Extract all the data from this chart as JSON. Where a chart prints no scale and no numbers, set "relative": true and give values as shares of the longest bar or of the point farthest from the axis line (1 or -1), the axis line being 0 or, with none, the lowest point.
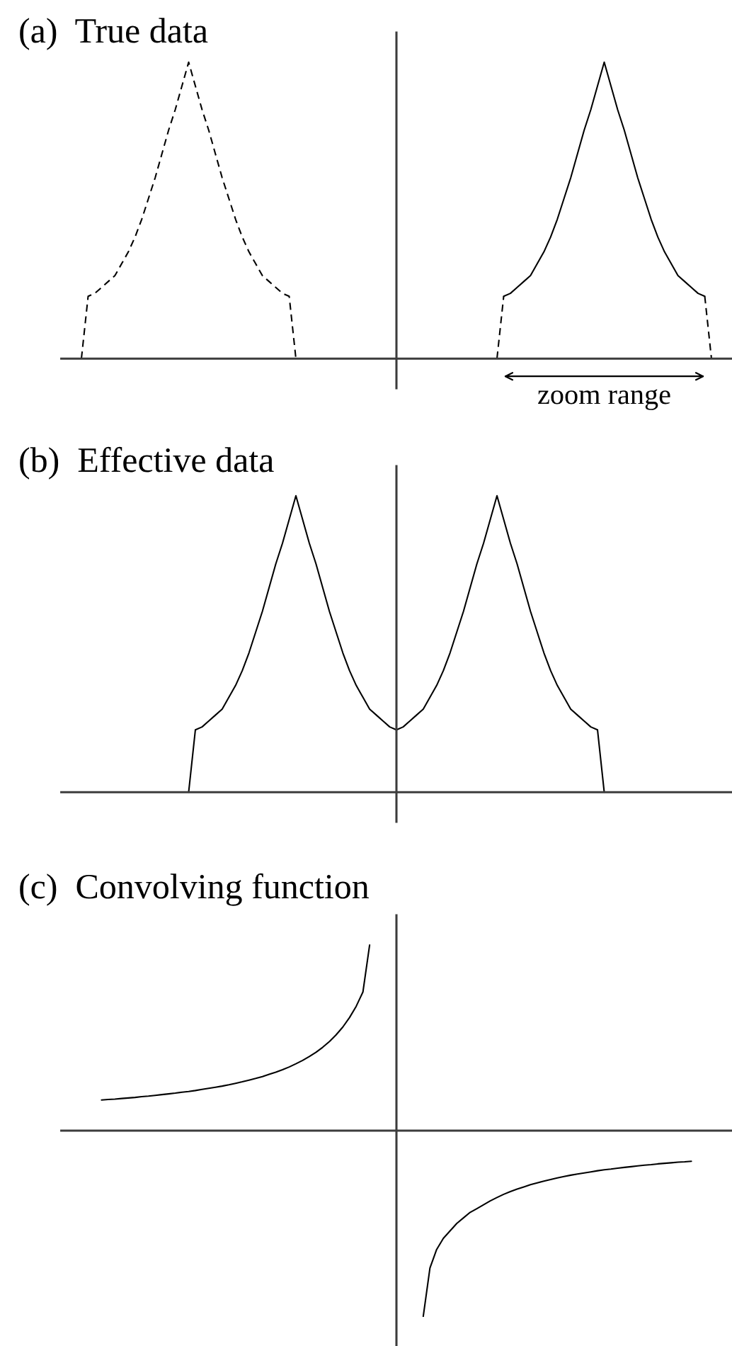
{
  "chart_data": [
    {
      "type": "line",
      "title": "(a)  True data",
      "relative": true,
      "line_style": "solid",
      "annotations": [
        "zoom range"
      ],
      "categories": [
        null,
        null,
        null,
        null,
        null,
        null,
        null,
        null,
        null,
        null,
        null,
        null,
        null,
        null,
        null,
        null,
        null,
        null,
        null,
        null,
        null,
        null,
        null,
        null,
        null,
        null,
        null,
        null,
        null,
        null,
        null,
        null,
        null,
        null,
        null,
        null,
        null,
        null,
        null,
        null,
        null,
        null,
        null,
        null,
        null,
        null,
        null,
        null,
        null,
        null,
        null,
        null,
        null,
        null,
        null,
        null,
        null,
        null,
        null,
        null,
        null,
        null,
        null,
        null,
        null,
        null,
        null,
        null,
        null,
        null,
        null,
        null,
        null,
        null,
        null,
        null,
        null,
        null,
        null,
        null,
        null,
        null,
        null,
        null,
        null,
        null,
        null,
        null,
        null,
        null,
        null,
        null,
        null,
        null,
        null,
        null,
        null,
        null,
        null,
        null,
        null
      ],
      "series": [
        {
          "color": "#000000",
          "line_style": "dashed",
          "values": [
            null,
            null,
            null,
            0,
            0.21,
            0.22,
            0.24,
            0.26,
            0.28,
            0.32,
            0.36,
            0.41,
            0.47,
            0.54,
            0.61,
            0.69,
            0.77,
            0.84,
            0.92,
            1,
            0.92,
            0.84,
            0.77,
            0.69,
            0.61,
            0.54,
            0.47,
            0.41,
            0.36,
            0.32,
            0.28,
            0.26,
            0.24,
            0.22,
            0.21,
            0,
            null,
            null,
            null,
            null,
            null,
            null,
            null,
            null,
            null,
            null,
            null,
            null,
            null,
            null,
            null,
            null,
            null,
            null,
            null,
            null,
            null,
            null,
            null,
            null,
            null,
            null,
            null,
            null,
            null,
            null,
            null,
            null,
            null,
            null,
            null,
            null,
            null,
            null,
            null,
            null,
            null,
            null,
            null,
            null,
            null,
            null,
            null,
            null,
            null,
            null,
            null,
            null,
            null,
            null,
            null,
            null,
            null,
            null,
            null,
            null,
            null,
            null,
            null,
            null,
            null
          ]
        },
        {
          "color": "#000000",
          "values": [
            null,
            null,
            null,
            null,
            null,
            null,
            null,
            null,
            null,
            null,
            null,
            null,
            null,
            null,
            null,
            null,
            null,
            null,
            null,
            null,
            null,
            null,
            null,
            null,
            null,
            null,
            null,
            null,
            null,
            null,
            null,
            null,
            null,
            null,
            null,
            null,
            null,
            null,
            null,
            null,
            null,
            null,
            null,
            null,
            null,
            null,
            null,
            null,
            null,
            null,
            null,
            null,
            null,
            null,
            null,
            null,
            null,
            null,
            null,
            null,
            null,
            null,
            null,
            null,
            null,
            null,
            0.21,
            0.22,
            0.24,
            0.26,
            0.28,
            0.32,
            0.36,
            0.41,
            0.47,
            0.54,
            0.61,
            0.69,
            0.77,
            0.84,
            0.92,
            1,
            0.92,
            0.84,
            0.77,
            0.69,
            0.61,
            0.54,
            0.47,
            0.41,
            0.36,
            0.32,
            0.28,
            0.26,
            0.24,
            0.22,
            0.21,
            null,
            null,
            null,
            null
          ]
        },
        {
          "color": "#000000",
          "line_style": "dashed",
          "values": [
            null,
            null,
            null,
            null,
            null,
            null,
            null,
            null,
            null,
            null,
            null,
            null,
            null,
            null,
            null,
            null,
            null,
            null,
            null,
            null,
            null,
            null,
            null,
            null,
            null,
            null,
            null,
            null,
            null,
            null,
            null,
            null,
            null,
            null,
            null,
            null,
            null,
            null,
            null,
            null,
            null,
            null,
            null,
            null,
            null,
            null,
            null,
            null,
            null,
            null,
            null,
            null,
            null,
            null,
            null,
            null,
            null,
            null,
            null,
            null,
            null,
            null,
            null,
            null,
            null,
            0,
            0.21,
            null,
            null,
            null,
            null,
            null,
            null,
            null,
            null,
            null,
            null,
            null,
            null,
            null,
            null,
            null,
            null,
            null,
            null,
            null,
            null,
            null,
            null,
            null,
            null,
            null,
            null,
            null,
            null,
            null,
            0.21,
            0,
            null,
            null,
            null
          ]
        }
      ]
    },
    {
      "type": "line",
      "title": "(b)  Effective data",
      "relative": true,
      "line_style": "solid",
      "categories": [
        null,
        null,
        null,
        null,
        null,
        null,
        null,
        null,
        null,
        null,
        null,
        null,
        null,
        null,
        null,
        null,
        null,
        null,
        null,
        null,
        null,
        null,
        null,
        null,
        null,
        null,
        null,
        null,
        null,
        null,
        null,
        null,
        null,
        null,
        null,
        null,
        null,
        null,
        null,
        null,
        null,
        null,
        null,
        null,
        null,
        null,
        null,
        null,
        null,
        null,
        null,
        null,
        null,
        null,
        null,
        null,
        null,
        null,
        null,
        null,
        null,
        null,
        null,
        null,
        null,
        null,
        null,
        null,
        null,
        null,
        null,
        null,
        null,
        null,
        null,
        null,
        null,
        null,
        null,
        null,
        null,
        null,
        null,
        null,
        null,
        null,
        null,
        null,
        null,
        null,
        null,
        null,
        null,
        null,
        null,
        null,
        null,
        null,
        null,
        null,
        null
      ],
      "series": [
        {
          "color": "#000000",
          "values": [
            null,
            null,
            null,
            null,
            null,
            null,
            null,
            null,
            null,
            null,
            null,
            null,
            null,
            null,
            null,
            null,
            null,
            null,
            null,
            0,
            0.21,
            0.22,
            0.24,
            0.26,
            0.28,
            0.32,
            0.36,
            0.41,
            0.47,
            0.54,
            0.61,
            0.69,
            0.77,
            0.84,
            0.92,
            1,
            0.92,
            0.84,
            0.77,
            0.69,
            0.61,
            0.54,
            0.47,
            0.41,
            0.36,
            0.32,
            0.28,
            0.26,
            0.24,
            0.22,
            0.21,
            0.22,
            0.24,
            0.26,
            0.28,
            0.32,
            0.36,
            0.41,
            0.47,
            0.54,
            0.61,
            0.69,
            0.77,
            0.84,
            0.92,
            1,
            0.92,
            0.84,
            0.77,
            0.69,
            0.61,
            0.54,
            0.47,
            0.41,
            0.36,
            0.32,
            0.28,
            0.26,
            0.24,
            0.22,
            0.21,
            0,
            null,
            null,
            null,
            null,
            null,
            null,
            null,
            null,
            null,
            null,
            null,
            null,
            null,
            null,
            null,
            null,
            null,
            null,
            null
          ]
        }
      ]
    },
    {
      "type": "line",
      "title": "(c)  Convolving function",
      "relative": true,
      "line_style": "solid",
      "categories": [
        null,
        null,
        null,
        null,
        null,
        null,
        null,
        null,
        null,
        null,
        null,
        null,
        null,
        null,
        null,
        null,
        null,
        null,
        null,
        null,
        null,
        null,
        null,
        null,
        null,
        null,
        null,
        null,
        null,
        null,
        null,
        null,
        null,
        null,
        null,
        null,
        null,
        null,
        null,
        null,
        null,
        null,
        null,
        null,
        null,
        null,
        null,
        null,
        null,
        null,
        null,
        null,
        null,
        null,
        null,
        null,
        null,
        null,
        null,
        null,
        null,
        null,
        null,
        null,
        null,
        null,
        null,
        null,
        null,
        null,
        null,
        null,
        null,
        null,
        null,
        null,
        null,
        null,
        null,
        null,
        null,
        null,
        null,
        null,
        null,
        null,
        null,
        null,
        null,
        null,
        null,
        null,
        null,
        null,
        null,
        null,
        null,
        null,
        null,
        null,
        null
      ],
      "series": [
        {
          "color": "#000000",
          "values": [
            null,
            null,
            null,
            null,
            null,
            null,
            0.165,
            0.168,
            0.17,
            0.173,
            0.176,
            0.179,
            0.183,
            0.186,
            0.19,
            0.194,
            0.198,
            0.202,
            0.207,
            0.211,
            0.216,
            0.222,
            0.228,
            0.234,
            0.24,
            0.247,
            0.255,
            0.263,
            0.272,
            0.281,
            0.291,
            0.303,
            0.315,
            0.328,
            0.343,
            0.36,
            0.378,
            0.399,
            0.422,
            0.449,
            0.48,
            0.516,
            0.558,
            0.609,
            0.67,
            0.747,
            1,
            null,
            null,
            null,
            null,
            null,
            null,
            null,
            -1,
            -0.74,
            -0.64,
            -0.58,
            -0.54,
            -0.5,
            -0.47,
            -0.44,
            -0.42,
            -0.399,
            -0.378,
            -0.36,
            -0.343,
            -0.328,
            -0.315,
            -0.303,
            -0.291,
            -0.281,
            -0.272,
            -0.263,
            -0.255,
            -0.247,
            -0.24,
            -0.234,
            -0.228,
            -0.222,
            -0.216,
            -0.211,
            -0.207,
            -0.202,
            -0.198,
            -0.194,
            -0.19,
            -0.186,
            -0.183,
            -0.179,
            -0.176,
            -0.173,
            -0.17,
            -0.168,
            -0.165,
            null,
            null,
            null,
            null,
            null,
            null
          ]
        }
      ]
    }
  ]
}
